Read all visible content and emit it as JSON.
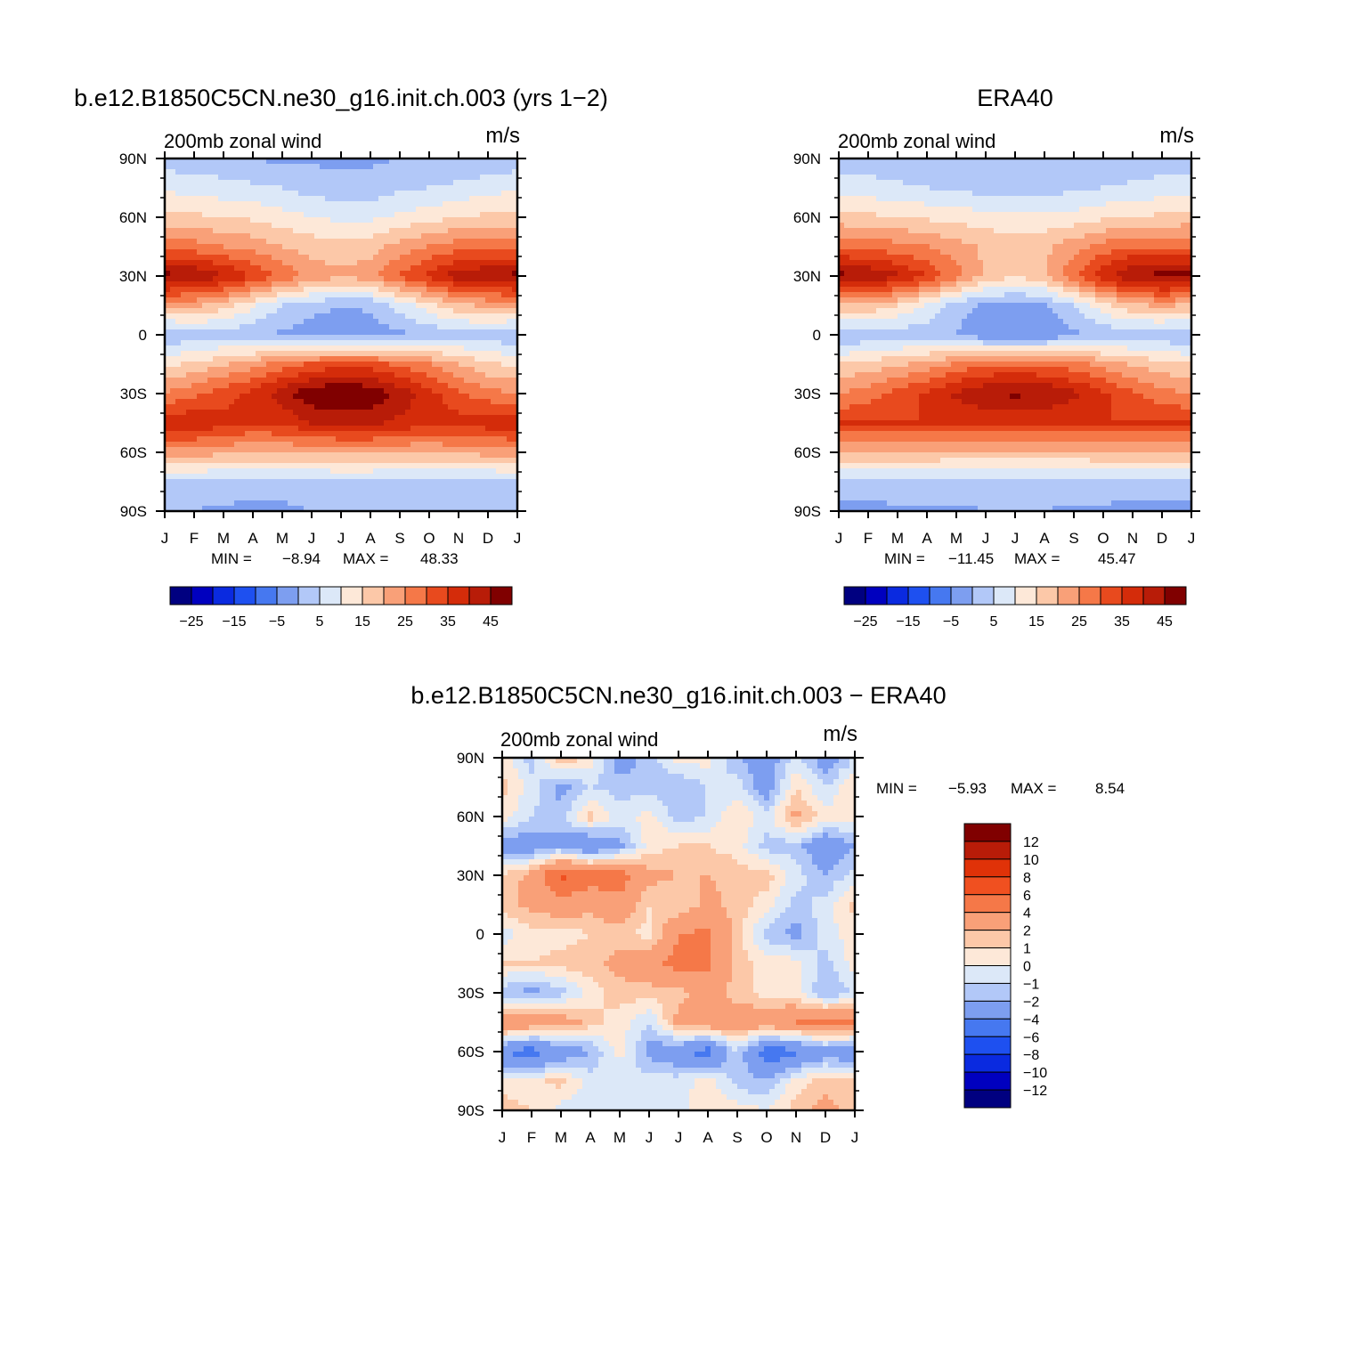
{
  "panels": [
    {
      "id": "model",
      "title": "b.e12.B1850C5CN.ne30_g16.init.ch.003 (yrs 1−2)",
      "subtitle": "200mb zonal wind",
      "units": "m/s",
      "stats": {
        "min_label": "MIN =",
        "min": "−8.94",
        "max_label": "MAX =",
        "max": "48.33"
      }
    },
    {
      "id": "obs",
      "title": "ERA40",
      "subtitle": "200mb zonal wind",
      "units": "m/s",
      "stats": {
        "min_label": "MIN =",
        "min": "−11.45",
        "max_label": "MAX =",
        "max": "45.47"
      }
    },
    {
      "id": "diff",
      "title": "b.e12.B1850C5CN.ne30_g16.init.ch.003 − ERA40",
      "subtitle": "200mb zonal wind",
      "units": "m/s",
      "stats": {
        "min_label": "MIN =",
        "min": "−5.93",
        "max_label": "MAX =",
        "max": "8.54"
      }
    }
  ],
  "colorbars": {
    "abs": {
      "colors": [
        "#000080",
        "#0000bf",
        "#0a2ae0",
        "#1e50f0",
        "#4678f0",
        "#7d9ef0",
        "#b2c8f8",
        "#dce8f8",
        "#fde8d8",
        "#fcc8a8",
        "#f9a078",
        "#f57848",
        "#e84a1e",
        "#d42c0a",
        "#b81c08",
        "#800000"
      ],
      "labels": [
        "−25",
        "−15",
        "−5",
        "5",
        "15",
        "25",
        "35",
        "45"
      ]
    },
    "diff": {
      "colors": [
        "#800000",
        "#b81c08",
        "#e03208",
        "#f05020",
        "#f57848",
        "#f9a078",
        "#fcc8a8",
        "#fde8d8",
        "#dce8f8",
        "#b2c8f8",
        "#7d9ef0",
        "#4678f0",
        "#1e50f0",
        "#0a2ae0",
        "#0000bf",
        "#000080"
      ],
      "labels": [
        "12",
        "10",
        "8",
        "6",
        "4",
        "2",
        "1",
        "0",
        "−1",
        "−2",
        "−4",
        "−6",
        "−8",
        "−10",
        "−12"
      ]
    }
  },
  "axes": {
    "months": [
      "J",
      "F",
      "M",
      "A",
      "M",
      "J",
      "J",
      "A",
      "S",
      "O",
      "N",
      "D",
      "J"
    ],
    "lats": [
      "90N",
      "60N",
      "30N",
      "0",
      "30S",
      "60S",
      "90S"
    ]
  },
  "chart_data": [
    {
      "type": "heatmap",
      "title": "b.e12.B1850C5CN.ne30_g16.init.ch.003 (yrs 1−2)",
      "subtitle": "200mb zonal wind",
      "units": "m/s",
      "x": [
        "J",
        "F",
        "M",
        "A",
        "M",
        "J",
        "J",
        "A",
        "S",
        "O",
        "N",
        "D",
        "J"
      ],
      "y": [
        90,
        75,
        60,
        45,
        30,
        15,
        0,
        -15,
        -30,
        -45,
        -60,
        -75,
        -90
      ],
      "ytick_labels": [
        "90N",
        "60N",
        "30N",
        "0",
        "30S",
        "60S",
        "90S"
      ],
      "levels": [
        -30,
        -25,
        -20,
        -15,
        -10,
        -5,
        0,
        5,
        10,
        15,
        20,
        25,
        30,
        35,
        40,
        45
      ],
      "z": [
        [
          -3,
          -3,
          -4,
          -5,
          -6,
          -6,
          -6,
          -6,
          -5,
          -5,
          -4,
          -4,
          -3
        ],
        [
          4,
          3,
          2,
          1,
          0,
          -2,
          -3,
          -3,
          -1,
          0,
          1,
          3,
          4
        ],
        [
          12,
          11,
          10,
          9,
          7,
          5,
          4,
          4,
          6,
          8,
          10,
          11,
          12
        ],
        [
          22,
          22,
          20,
          18,
          15,
          13,
          12,
          13,
          17,
          20,
          23,
          23,
          22
        ],
        [
          42,
          40,
          36,
          30,
          24,
          18,
          16,
          18,
          26,
          32,
          38,
          40,
          42
        ],
        [
          16,
          16,
          12,
          6,
          0,
          -3,
          -5,
          -4,
          2,
          8,
          14,
          16,
          16
        ],
        [
          -5,
          -3,
          -2,
          -4,
          -6,
          -8,
          -8,
          -8,
          -6,
          -4,
          -3,
          -3,
          -5
        ],
        [
          9,
          11,
          14,
          18,
          22,
          26,
          27,
          27,
          24,
          20,
          15,
          11,
          9
        ],
        [
          20,
          24,
          28,
          32,
          38,
          44,
          47,
          44,
          38,
          32,
          26,
          22,
          20
        ],
        [
          34,
          34,
          32,
          30,
          31,
          35,
          36,
          36,
          34,
          32,
          32,
          33,
          34
        ],
        [
          18,
          18,
          16,
          15,
          15,
          16,
          16,
          16,
          15,
          15,
          16,
          17,
          18
        ],
        [
          -2,
          -2,
          -2,
          -3,
          -3,
          -2,
          -1,
          -1,
          -2,
          -3,
          -3,
          -2,
          -2
        ],
        [
          -5,
          -5,
          -6,
          -6,
          -6,
          -5,
          -5,
          -5,
          -5,
          -5,
          -5,
          -5,
          -5
        ]
      ],
      "min": -8.94,
      "max": 48.33
    },
    {
      "type": "heatmap",
      "title": "ERA40",
      "subtitle": "200mb zonal wind",
      "units": "m/s",
      "x": [
        "J",
        "F",
        "M",
        "A",
        "M",
        "J",
        "J",
        "A",
        "S",
        "O",
        "N",
        "D",
        "J"
      ],
      "y": [
        90,
        75,
        60,
        45,
        30,
        15,
        0,
        -15,
        -30,
        -45,
        -60,
        -75,
        -90
      ],
      "ytick_labels": [
        "90N",
        "60N",
        "30N",
        "0",
        "30S",
        "60S",
        "90S"
      ],
      "levels": [
        -30,
        -25,
        -20,
        -15,
        -10,
        -5,
        0,
        5,
        10,
        15,
        20,
        25,
        30,
        35,
        40,
        45
      ],
      "z": [
        [
          -3,
          -3,
          -3,
          -4,
          -4,
          -5,
          -5,
          -5,
          -4,
          -4,
          -3,
          -3,
          -3
        ],
        [
          2,
          2,
          1,
          0,
          -1,
          -2,
          -2,
          -2,
          -1,
          0,
          1,
          2,
          2
        ],
        [
          12,
          11,
          10,
          9,
          8,
          7,
          6,
          6,
          7,
          9,
          10,
          11,
          12
        ],
        [
          24,
          23,
          22,
          20,
          17,
          14,
          13,
          14,
          18,
          22,
          25,
          24,
          24
        ],
        [
          42,
          40,
          36,
          30,
          22,
          14,
          10,
          14,
          24,
          34,
          40,
          42,
          42
        ],
        [
          14,
          14,
          10,
          4,
          -3,
          -6,
          -7,
          -6,
          0,
          8,
          14,
          16,
          14
        ],
        [
          -5,
          -4,
          -3,
          -3,
          -5,
          -9,
          -10,
          -9,
          -6,
          -4,
          -3,
          -4,
          -5
        ],
        [
          10,
          12,
          14,
          17,
          21,
          24,
          25,
          24,
          22,
          18,
          14,
          12,
          10
        ],
        [
          20,
          23,
          27,
          31,
          36,
          40,
          41,
          40,
          36,
          31,
          26,
          22,
          20
        ],
        [
          30,
          30,
          30,
          30,
          30,
          31,
          31,
          31,
          30,
          30,
          30,
          30,
          30
        ],
        [
          16,
          16,
          15,
          15,
          14,
          14,
          14,
          14,
          14,
          15,
          15,
          16,
          16
        ],
        [
          -3,
          -3,
          -2,
          -2,
          -2,
          -2,
          -2,
          -2,
          -2,
          -2,
          -3,
          -3,
          -3
        ],
        [
          -6,
          -6,
          -6,
          -6,
          -6,
          -5,
          -5,
          -5,
          -6,
          -6,
          -6,
          -6,
          -6
        ]
      ],
      "min": -11.45,
      "max": 45.47
    },
    {
      "type": "heatmap",
      "title": "b.e12.B1850C5CN.ne30_g16.init.ch.003 − ERA40",
      "subtitle": "200mb zonal wind",
      "units": "m/s",
      "x": [
        "J",
        "F",
        "M",
        "A",
        "M",
        "J",
        "J",
        "A",
        "S",
        "O",
        "N",
        "D",
        "J"
      ],
      "y": [
        90,
        75,
        60,
        45,
        30,
        15,
        0,
        -15,
        -30,
        -45,
        -60,
        -75,
        -90
      ],
      "ytick_labels": [
        "90N",
        "60N",
        "30N",
        "0",
        "30S",
        "60S",
        "90S"
      ],
      "levels": [
        -12,
        -10,
        -8,
        -6,
        -4,
        -2,
        -1,
        0,
        1,
        2,
        4,
        6,
        8,
        10,
        12
      ],
      "z": [
        [
          0.5,
          -1.5,
          2,
          0.5,
          -3,
          -1.5,
          0.5,
          0.5,
          -2,
          -3,
          -0.5,
          -3,
          -1
        ],
        [
          1.5,
          -0.5,
          -2.5,
          -1,
          -1.5,
          -1.5,
          -2,
          -1,
          -0.5,
          -3,
          1,
          -1,
          1
        ],
        [
          0.5,
          -1,
          -1.5,
          1.5,
          -0.5,
          0.5,
          -1.5,
          -1,
          1,
          -0.5,
          2.5,
          0.5,
          0.5
        ],
        [
          -3,
          -3,
          -2.5,
          -4,
          -2.5,
          0.5,
          1,
          1,
          0.5,
          -1.5,
          -1.5,
          -3.5,
          -2
        ],
        [
          1,
          2.5,
          6.5,
          5,
          5,
          2.5,
          2,
          2,
          1.5,
          1.5,
          -0.5,
          -2,
          -0.5
        ],
        [
          1.5,
          2.5,
          3,
          2.5,
          3.5,
          1,
          1,
          2.5,
          1.5,
          0.5,
          -1.5,
          -0.5,
          1.5
        ],
        [
          -0.5,
          0.5,
          0.5,
          1,
          1.5,
          0.5,
          4,
          4.5,
          1.5,
          -1.5,
          -2.5,
          -0.5,
          0.5
        ],
        [
          1,
          1,
          1.5,
          1.5,
          2.5,
          3,
          5,
          4.5,
          1.5,
          0.5,
          0.5,
          -1.5,
          0.5
        ],
        [
          -1.5,
          -2.5,
          -1.5,
          0.5,
          1.5,
          1.5,
          1.5,
          2.5,
          1.5,
          0.5,
          0.5,
          -2,
          -1
        ],
        [
          4,
          3.5,
          3,
          1.5,
          0.5,
          -1,
          2.5,
          3.5,
          3,
          3.5,
          4,
          4.5,
          4
        ],
        [
          -4,
          -5,
          -3.5,
          -2,
          0.5,
          -2.5,
          -3.5,
          -5,
          -1,
          -5.5,
          -4.5,
          -3,
          -3.5
        ],
        [
          0.5,
          0.5,
          1.5,
          -0.5,
          -1,
          -0.5,
          -0.5,
          0.5,
          -1.5,
          -2,
          0.5,
          1.5,
          1
        ],
        [
          1.5,
          1,
          -0.5,
          -0.5,
          -0.5,
          -1,
          -0.5,
          1,
          0.5,
          0,
          1.5,
          2.5,
          1.5
        ]
      ],
      "min": -5.93,
      "max": 8.54
    }
  ]
}
